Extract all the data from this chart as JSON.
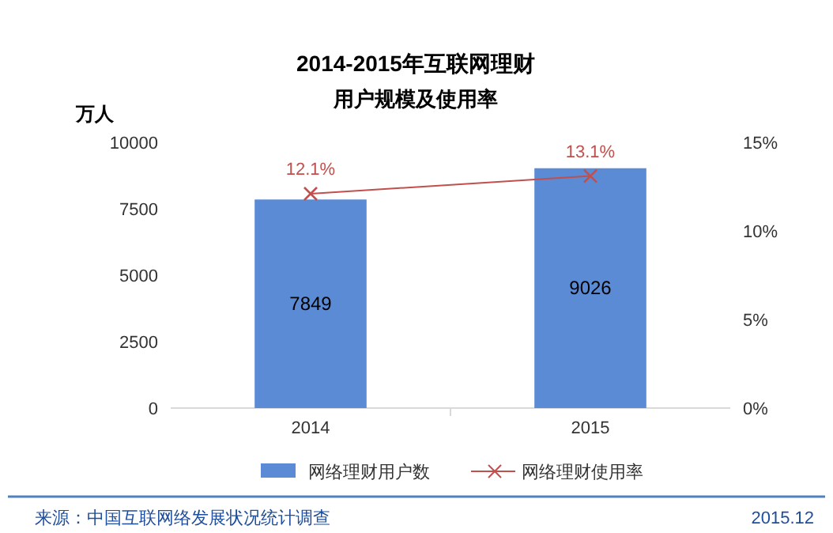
{
  "chart_data": {
    "type": "bar",
    "title": "2014-2015年互联网理财",
    "subtitle": "用户规模及使用率",
    "ylabel": "万人",
    "categories": [
      "2014",
      "2015"
    ],
    "series": [
      {
        "name": "网络理财用户数",
        "color": "#5b8bd5",
        "values": [
          7849,
          9026
        ],
        "value_labels": [
          "7849",
          "9026"
        ]
      },
      {
        "name": "网络理财使用率",
        "type": "line",
        "axis": "y2",
        "color": "#c0504d",
        "marker": "cross",
        "values": [
          12.1,
          13.1
        ],
        "value_labels": [
          "12.1%",
          "13.1%"
        ]
      }
    ],
    "ylim": [
      0,
      10000
    ],
    "yticks": [
      0,
      2500,
      5000,
      7500,
      10000
    ],
    "y2lim": [
      0,
      15
    ],
    "y2ticks": [
      {
        "value": 0,
        "label": "0%"
      },
      {
        "value": 5,
        "label": "5%"
      },
      {
        "value": 10,
        "label": "10%"
      },
      {
        "value": 15,
        "label": "15%"
      }
    ],
    "grid": false,
    "legend": "bottom",
    "annotations": [
      "来源：中国互联网络发展状况统计调查",
      "2015.12"
    ]
  }
}
